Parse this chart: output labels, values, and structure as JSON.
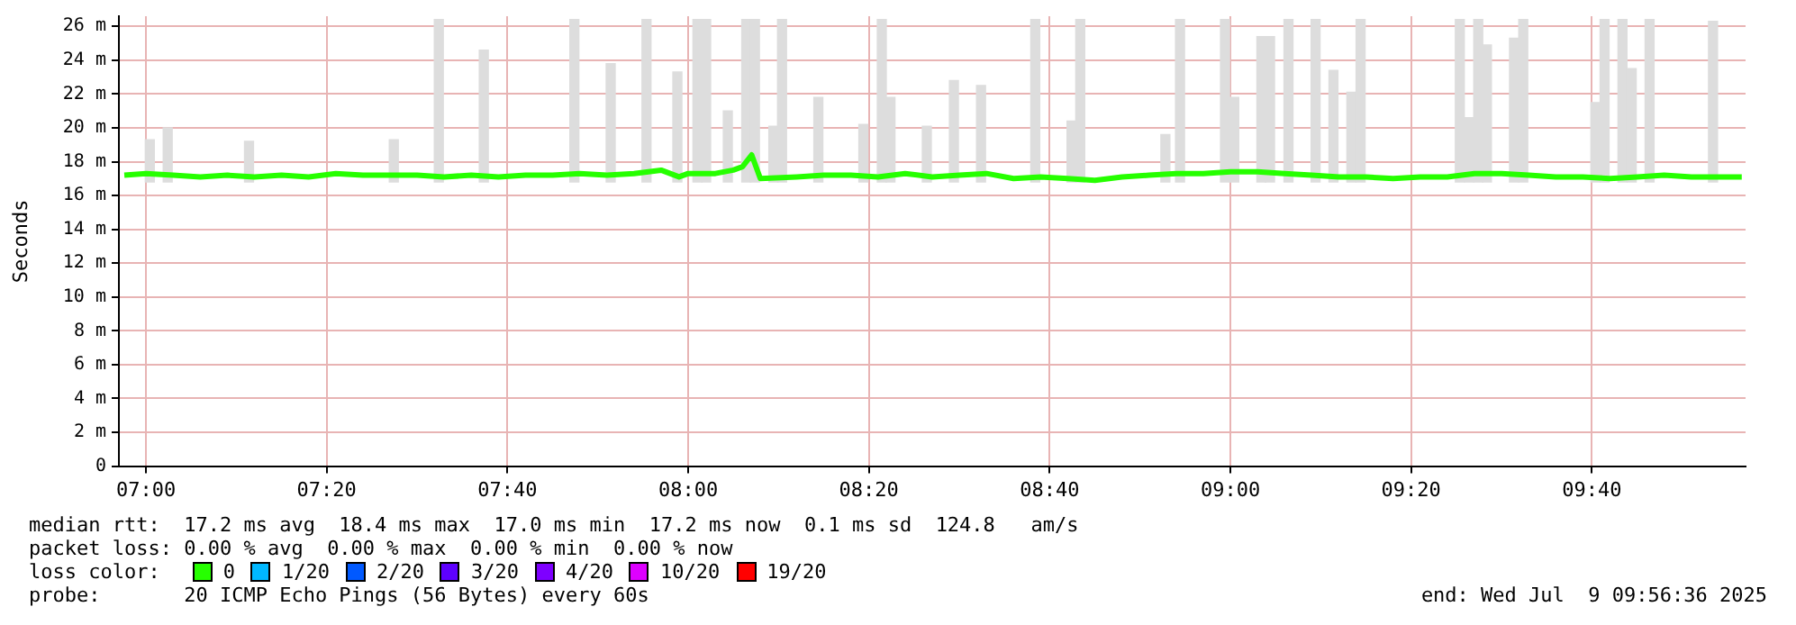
{
  "chart_data": {
    "type": "line",
    "ylabel": "Seconds",
    "legend_title": "loss color:",
    "legend": "bottom",
    "grid": true,
    "xlim": [
      6.95,
      9.95
    ],
    "xticks": [
      {
        "value": 7,
        "label": "07:00"
      },
      {
        "value": 7.3333,
        "label": "07:20"
      },
      {
        "value": 7.6667,
        "label": "07:40"
      },
      {
        "value": 8,
        "label": "08:00"
      },
      {
        "value": 8.3333,
        "label": "08:20"
      },
      {
        "value": 8.6667,
        "label": "08:40"
      },
      {
        "value": 9,
        "label": "09:00"
      },
      {
        "value": 9.3333,
        "label": "09:20"
      },
      {
        "value": 9.6667,
        "label": "09:40"
      }
    ],
    "ylim": [
      0,
      26.6
    ],
    "yticks": [
      0,
      {
        "value": 2,
        "label": "2 m"
      },
      {
        "value": 4,
        "label": "4 m"
      },
      {
        "value": 6,
        "label": "6 m"
      },
      {
        "value": 8,
        "label": "8 m"
      },
      {
        "value": 10,
        "label": "10 m"
      },
      {
        "value": 12,
        "label": "12 m"
      },
      {
        "value": 14,
        "label": "14 m"
      },
      {
        "value": 16,
        "label": "16 m"
      },
      {
        "value": 18,
        "label": "18 m"
      },
      {
        "value": 20,
        "label": "20 m"
      },
      {
        "value": 22,
        "label": "22 m"
      },
      {
        "value": 24,
        "label": "24 m"
      },
      {
        "value": 26,
        "label": "26 m"
      }
    ],
    "series": [
      {
        "type": "bar",
        "color": "#dddddd",
        "x": [
          7.007,
          7.04,
          7.19,
          7.457,
          7.54,
          7.623,
          7.79,
          7.857,
          7.923,
          7.98,
          8.017,
          8.033,
          8.073,
          8.107,
          8.123,
          8.157,
          8.173,
          8.24,
          8.323,
          8.357,
          8.373,
          8.44,
          8.49,
          8.54,
          8.64,
          8.707,
          8.723,
          8.88,
          8.907,
          8.99,
          9.007,
          9.057,
          9.073,
          9.107,
          9.157,
          9.19,
          9.223,
          9.24,
          9.423,
          9.44,
          9.457,
          9.473,
          9.523,
          9.54,
          9.673,
          9.69,
          9.723,
          9.74,
          9.773,
          9.89
        ],
        "base": [
          16.8,
          16.8,
          16.8,
          16.8,
          16.8,
          16.8,
          16.8,
          16.8,
          16.8,
          16.8,
          16.8,
          16.8,
          16.8,
          16.8,
          16.8,
          16.8,
          16.8,
          16.8,
          16.8,
          16.8,
          16.8,
          16.8,
          16.8,
          16.8,
          16.8,
          16.8,
          16.8,
          16.8,
          16.8,
          16.8,
          16.8,
          16.8,
          16.8,
          16.8,
          16.8,
          16.8,
          16.8,
          16.8,
          16.8,
          16.8,
          16.8,
          16.8,
          16.8,
          16.8,
          16.8,
          16.8,
          16.8,
          16.8,
          16.8,
          16.8
        ],
        "values": [
          2.5,
          3.2,
          2.4,
          2.5,
          9.6,
          7.8,
          9.6,
          7.0,
          9.6,
          6.5,
          9.6,
          9.6,
          4.2,
          9.6,
          9.6,
          3.3,
          9.6,
          5.0,
          3.4,
          9.6,
          5.0,
          3.3,
          6.0,
          5.7,
          9.6,
          3.6,
          9.6,
          2.8,
          9.6,
          9.6,
          5.0,
          8.6,
          8.6,
          9.6,
          9.6,
          6.6,
          5.3,
          9.6,
          9.6,
          3.8,
          9.6,
          8.1,
          8.5,
          9.6,
          4.7,
          9.6,
          9.6,
          6.7,
          9.6,
          9.5
        ]
      },
      {
        "name": "0",
        "color": "#26ff00",
        "x": [
          6.96,
          7.0,
          7.05,
          7.1,
          7.15,
          7.2,
          7.25,
          7.3,
          7.35,
          7.4,
          7.45,
          7.5,
          7.55,
          7.6,
          7.65,
          7.7,
          7.75,
          7.8,
          7.85,
          7.9,
          7.95,
          7.983,
          8.0,
          8.05,
          8.083,
          8.1,
          8.117,
          8.133,
          8.2,
          8.25,
          8.3,
          8.35,
          8.4,
          8.45,
          8.5,
          8.55,
          8.6,
          8.65,
          8.7,
          8.75,
          8.8,
          8.85,
          8.9,
          8.95,
          9.0,
          9.05,
          9.1,
          9.15,
          9.2,
          9.25,
          9.3,
          9.35,
          9.4,
          9.45,
          9.5,
          9.55,
          9.6,
          9.65,
          9.7,
          9.75,
          9.8,
          9.85,
          9.9,
          9.943
        ],
        "values": [
          17.2,
          17.3,
          17.2,
          17.1,
          17.2,
          17.1,
          17.2,
          17.1,
          17.3,
          17.2,
          17.2,
          17.2,
          17.1,
          17.2,
          17.1,
          17.2,
          17.2,
          17.3,
          17.2,
          17.3,
          17.5,
          17.1,
          17.3,
          17.3,
          17.5,
          17.7,
          18.4,
          17.0,
          17.1,
          17.2,
          17.2,
          17.1,
          17.3,
          17.1,
          17.2,
          17.3,
          17.0,
          17.1,
          17.0,
          16.9,
          17.1,
          17.2,
          17.3,
          17.3,
          17.4,
          17.4,
          17.3,
          17.2,
          17.1,
          17.1,
          17.0,
          17.1,
          17.1,
          17.3,
          17.3,
          17.2,
          17.1,
          17.1,
          17.0,
          17.1,
          17.2,
          17.1,
          17.1,
          17.1
        ]
      },
      {
        "name": "1/20",
        "color": "#00b8ff"
      },
      {
        "name": "2/20",
        "color": "#0059ff"
      },
      {
        "name": "3/20",
        "color": "#5e00ff"
      },
      {
        "name": "4/20",
        "color": "#7e00ff"
      },
      {
        "name": "10/20",
        "color": "#dd00ff"
      },
      {
        "name": "19/20",
        "color": "#ff0000"
      }
    ],
    "annotations": [
      "median rtt:  17.2 ms avg  18.4 ms max  17.0 ms min  17.2 ms now  0.1 ms sd  124.8   am/s",
      "packet loss: 0.00 % avg  0.00 % max  0.00 % min  0.00 % now",
      "probe:       20 ICMP Echo Pings (56 Bytes) every 60s",
      "end: Wed Jul  9 09:56:36 2025"
    ]
  }
}
